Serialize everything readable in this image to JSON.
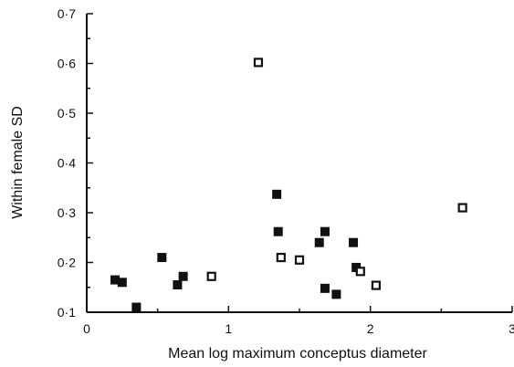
{
  "chart_data": {
    "type": "scatter",
    "title": "",
    "xlabel": "Mean log maximum conceptus diameter",
    "ylabel": "Within female SD",
    "xlim": [
      0,
      3
    ],
    "ylim": [
      0.1,
      0.7
    ],
    "x_ticks": [
      0,
      1,
      2,
      3
    ],
    "x_tick_labels": [
      "0",
      "1",
      "2",
      "3"
    ],
    "y_ticks": [
      0.1,
      0.2,
      0.3,
      0.4,
      0.5,
      0.6,
      0.7
    ],
    "y_tick_labels": [
      "0·1",
      "0·2",
      "0·3",
      "0·4",
      "0·5",
      "0·6",
      "0·7"
    ],
    "grid": false,
    "legend": false,
    "series": [
      {
        "marker": "filled-square",
        "points": [
          {
            "x": 0.2,
            "y": 0.165
          },
          {
            "x": 0.25,
            "y": 0.16
          },
          {
            "x": 0.35,
            "y": 0.11
          },
          {
            "x": 0.53,
            "y": 0.21
          },
          {
            "x": 0.64,
            "y": 0.155
          },
          {
            "x": 0.68,
            "y": 0.172
          },
          {
            "x": 1.34,
            "y": 0.337
          },
          {
            "x": 1.35,
            "y": 0.262
          },
          {
            "x": 1.64,
            "y": 0.24
          },
          {
            "x": 1.68,
            "y": 0.262
          },
          {
            "x": 1.68,
            "y": 0.148
          },
          {
            "x": 1.76,
            "y": 0.136
          },
          {
            "x": 1.88,
            "y": 0.24
          },
          {
            "x": 1.9,
            "y": 0.19
          }
        ]
      },
      {
        "marker": "open-square",
        "points": [
          {
            "x": 0.88,
            "y": 0.172
          },
          {
            "x": 1.21,
            "y": 0.602
          },
          {
            "x": 1.37,
            "y": 0.21
          },
          {
            "x": 1.5,
            "y": 0.205
          },
          {
            "x": 1.93,
            "y": 0.182
          },
          {
            "x": 2.04,
            "y": 0.154
          },
          {
            "x": 2.65,
            "y": 0.31
          }
        ]
      }
    ]
  }
}
